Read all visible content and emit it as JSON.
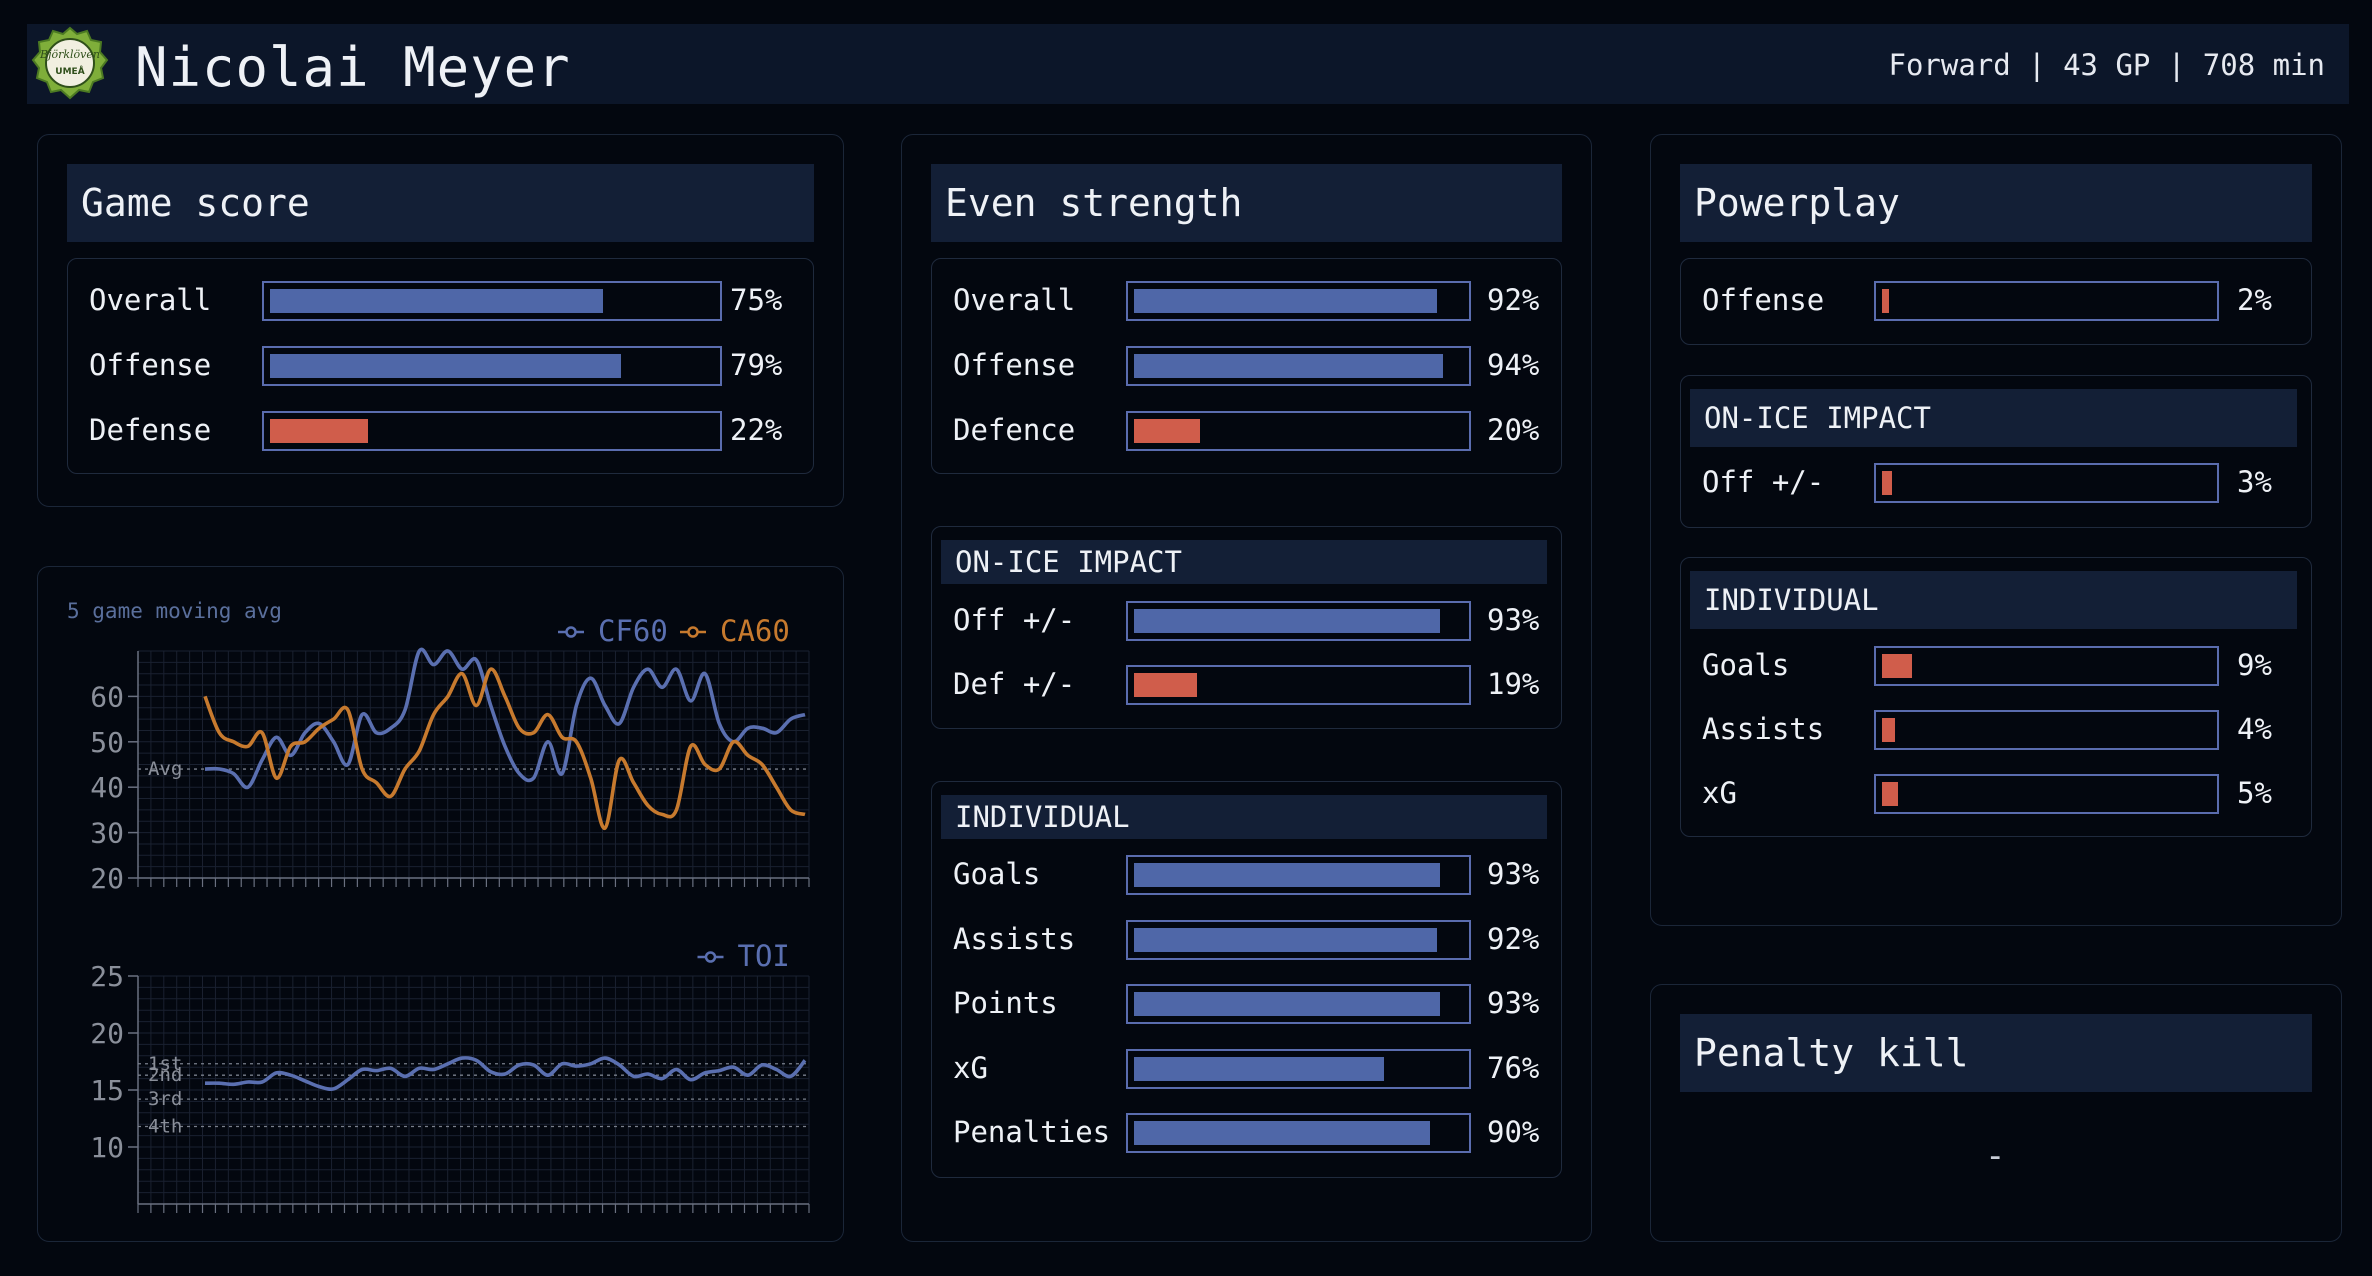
{
  "header": {
    "player_name": "Nicolai Meyer",
    "meta": "Forward | 43 GP | 708 min",
    "logo_text": [
      "Björklöven",
      "UMEÅ"
    ]
  },
  "colors": {
    "background": "#03070f",
    "panel": "#131f36",
    "blue_bar": "#4f67a8",
    "red_bar": "#d05d4b",
    "cf60_line": "#5a6fb0",
    "ca60_line": "#c77a2e"
  },
  "game_score": {
    "title": "Game score",
    "rows": [
      {
        "label": "Overall",
        "pct": "75%",
        "value": 75,
        "color": "blue"
      },
      {
        "label": "Offense",
        "pct": "79%",
        "value": 79,
        "color": "blue"
      },
      {
        "label": "Defense",
        "pct": "22%",
        "value": 22,
        "color": "red"
      }
    ]
  },
  "even_strength": {
    "title": "Even strength",
    "summary": [
      {
        "label": "Overall",
        "pct": "92%",
        "value": 92,
        "color": "blue"
      },
      {
        "label": "Offense",
        "pct": "94%",
        "value": 94,
        "color": "blue"
      },
      {
        "label": "Defence",
        "pct": "20%",
        "value": 20,
        "color": "red"
      }
    ],
    "on_ice_title": "ON-ICE IMPACT",
    "on_ice": [
      {
        "label": "Off +/-",
        "pct": "93%",
        "value": 93,
        "color": "blue"
      },
      {
        "label": "Def +/-",
        "pct": "19%",
        "value": 19,
        "color": "red"
      }
    ],
    "individual_title": "INDIVIDUAL",
    "individual": [
      {
        "label": "Goals",
        "pct": "93%",
        "value": 93,
        "color": "blue"
      },
      {
        "label": "Assists",
        "pct": "92%",
        "value": 92,
        "color": "blue"
      },
      {
        "label": "Points",
        "pct": "93%",
        "value": 93,
        "color": "blue"
      },
      {
        "label": "xG",
        "pct": "76%",
        "value": 76,
        "color": "blue"
      },
      {
        "label": "Penalties",
        "pct": "90%",
        "value": 90,
        "color": "blue"
      }
    ]
  },
  "powerplay": {
    "title": "Powerplay",
    "summary": [
      {
        "label": "Offense",
        "pct": "2%",
        "value": 2,
        "color": "red"
      }
    ],
    "on_ice_title": "ON-ICE IMPACT",
    "on_ice": [
      {
        "label": "Off +/-",
        "pct": "3%",
        "value": 3,
        "color": "red"
      }
    ],
    "individual_title": "INDIVIDUAL",
    "individual": [
      {
        "label": "Goals",
        "pct": "9%",
        "value": 9,
        "color": "red"
      },
      {
        "label": "Assists",
        "pct": "4%",
        "value": 4,
        "color": "red"
      },
      {
        "label": "xG",
        "pct": "5%",
        "value": 5,
        "color": "red"
      }
    ]
  },
  "penalty_kill": {
    "title": "Penalty kill",
    "value": "-"
  },
  "chart_data": [
    {
      "type": "line",
      "title": "5 game moving avg",
      "xlabel": "",
      "ylabel": "",
      "ylim": [
        20,
        70
      ],
      "yticks": [
        20,
        30,
        40,
        50,
        60
      ],
      "grid": true,
      "legend": "top-right",
      "reference_lines": [
        {
          "label": "Avg",
          "y": 44
        }
      ],
      "x": [
        1,
        2,
        3,
        4,
        5,
        6,
        7,
        8,
        9,
        10,
        11,
        12,
        13,
        14,
        15,
        16,
        17,
        18,
        19,
        20,
        21,
        22,
        23,
        24,
        25,
        26,
        27,
        28,
        29,
        30,
        31,
        32,
        33,
        34,
        35,
        36,
        37,
        38,
        39,
        40,
        41,
        42,
        43
      ],
      "series": [
        {
          "name": "CF60",
          "color": "#5a6fb0",
          "values": [
            44,
            44,
            43,
            40,
            46,
            51,
            47,
            52,
            54,
            50,
            45,
            56,
            52,
            53,
            57,
            70,
            67,
            70,
            66,
            68,
            58,
            49,
            43,
            42,
            50,
            43,
            58,
            64,
            58,
            54,
            62,
            66,
            62,
            66,
            59,
            65,
            54,
            50,
            53,
            53,
            52,
            55,
            56
          ]
        },
        {
          "name": "CA60",
          "color": "#c77a2e",
          "values": [
            60,
            52,
            50,
            49,
            52,
            42,
            49,
            50,
            53,
            55,
            57,
            44,
            41,
            38,
            44,
            48,
            56,
            60,
            65,
            58,
            66,
            60,
            53,
            52,
            56,
            51,
            50,
            42,
            31,
            46,
            41,
            36,
            34,
            35,
            49,
            45,
            44,
            50,
            47,
            45,
            40,
            35,
            34
          ]
        }
      ]
    },
    {
      "type": "line",
      "title": "",
      "xlabel": "",
      "ylabel": "",
      "ylim": [
        5,
        25
      ],
      "yticks": [
        10,
        15,
        20,
        25
      ],
      "grid": true,
      "legend": "top-right",
      "reference_lines": [
        {
          "label": "1st",
          "y": 17.3
        },
        {
          "label": "2nd",
          "y": 16.3
        },
        {
          "label": "3rd",
          "y": 14.2
        },
        {
          "label": "4th",
          "y": 11.8
        }
      ],
      "x": [
        1,
        2,
        3,
        4,
        5,
        6,
        7,
        8,
        9,
        10,
        11,
        12,
        13,
        14,
        15,
        16,
        17,
        18,
        19,
        20,
        21,
        22,
        23,
        24,
        25,
        26,
        27,
        28,
        29,
        30,
        31,
        32,
        33,
        34,
        35,
        36,
        37,
        38,
        39,
        40,
        41,
        42,
        43
      ],
      "series": [
        {
          "name": "TOI",
          "color": "#5a6fb0",
          "values": [
            15.6,
            15.6,
            15.5,
            15.7,
            15.7,
            16.5,
            16.3,
            15.8,
            15.3,
            15.1,
            15.9,
            16.8,
            16.7,
            16.9,
            16.2,
            16.9,
            16.8,
            17.3,
            17.8,
            17.6,
            16.6,
            16.4,
            17.2,
            17.2,
            16.3,
            17.3,
            17.1,
            17.3,
            17.8,
            17.2,
            16.2,
            16.4,
            16.0,
            16.8,
            15.9,
            16.5,
            16.7,
            17.0,
            16.3,
            17.2,
            16.8,
            16.2,
            17.6
          ]
        }
      ]
    }
  ]
}
